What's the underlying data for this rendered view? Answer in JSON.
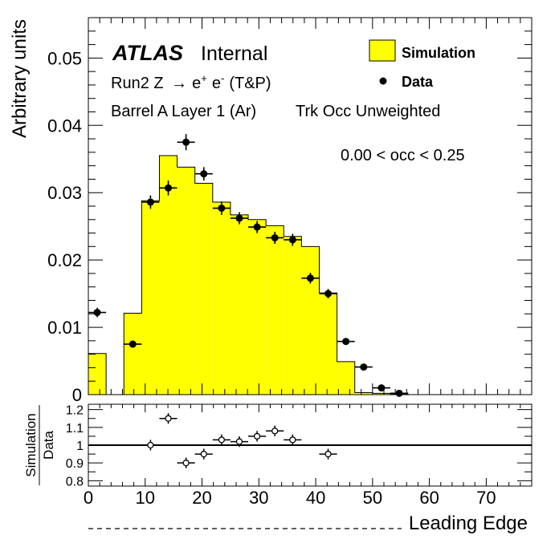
{
  "chart_data": {
    "type": "bar",
    "annotations": {
      "experiment": "ATLAS",
      "status": "Internal",
      "process_prefix": "Run2 Z ",
      "arrow": "→",
      "eplus_e": "e",
      "eplus_sup": "+",
      "eminus_e": "e",
      "eminus_sup": "-",
      "process_suffix": "(T&P)",
      "selection": "Barrel A Layer 1 (Ar)",
      "weighting": "Trk Occ Unweighted",
      "occupancy_range": "0.00 < occ < 0.25"
    },
    "main": {
      "ylabel": "Arbitrary units",
      "xlim": [
        0,
        78
      ],
      "ylim": [
        0,
        0.056
      ],
      "y_ticks": [
        0,
        0.01,
        0.02,
        0.03,
        0.04,
        0.05
      ],
      "y_tick_labels": [
        "0",
        "0.01",
        "0.02",
        "0.03",
        "0.04",
        "0.05"
      ],
      "legend": {
        "placement": "top-right",
        "simulation_label": "Simulation",
        "data_label": "Data",
        "simulation_color": "#ffff00"
      },
      "simulation": {
        "name": "Simulation",
        "bin_edges": [
          0,
          3.125,
          6.25,
          9.375,
          12.5,
          15.625,
          18.75,
          21.875,
          25,
          28.125,
          31.25,
          34.375,
          37.5,
          40.625,
          43.75,
          46.875,
          50,
          53.125,
          56.25
        ],
        "values": [
          0.0061,
          0,
          0.0121,
          0.0288,
          0.0355,
          0.0338,
          0.0314,
          0.0286,
          0.0267,
          0.026,
          0.0251,
          0.0235,
          0.022,
          0.0151,
          0.0049,
          0.0003,
          0.0002,
          0.0001
        ]
      },
      "data": {
        "name": "Data",
        "x": [
          1.5625,
          7.8125,
          10.9375,
          14.0625,
          17.1875,
          20.3125,
          23.4375,
          26.5625,
          29.6875,
          32.8125,
          35.9375,
          39.0625,
          42.1875,
          45.3125,
          48.4375,
          51.5625,
          54.6875
        ],
        "y": [
          0.0122,
          0.0075,
          0.0286,
          0.0307,
          0.0375,
          0.0328,
          0.0277,
          0.0262,
          0.0249,
          0.0233,
          0.023,
          0.0173,
          0.015,
          0.0079,
          0.0041,
          0.001,
          0.0002
        ],
        "yerr": [
          0.0007,
          0.0005,
          0.001,
          0.0011,
          0.0012,
          0.001,
          0.001,
          0.0009,
          0.0009,
          0.0009,
          0.0009,
          0.0008,
          0.0007,
          0.0005,
          0.0003,
          0.0002,
          0.0001
        ],
        "xerr": 1.5625
      }
    },
    "ratio": {
      "ylabel_num": "Simulation",
      "ylabel_den": "Data",
      "ylim": [
        0.77,
        1.23
      ],
      "y_ticks": [
        0.8,
        0.9,
        1.0,
        1.1,
        1.2
      ],
      "y_tick_labels": [
        "0.8",
        "0.9",
        "1",
        "1.1",
        "1.2"
      ],
      "reference_line": 1.0,
      "x": [
        10.9375,
        14.0625,
        17.1875,
        20.3125,
        23.4375,
        26.5625,
        29.6875,
        32.8125,
        35.9375,
        42.1875
      ],
      "y": [
        1.0,
        1.15,
        0.9,
        0.95,
        1.03,
        1.02,
        1.05,
        1.08,
        1.03,
        0.95
      ],
      "yerr": [
        0.03,
        0.03,
        0.03,
        0.03,
        0.03,
        0.03,
        0.03,
        0.03,
        0.03,
        0.03
      ],
      "xerr": 1.5625
    },
    "xlabel": "Leading Edge",
    "x_ticks": [
      0,
      10,
      20,
      30,
      40,
      50,
      60,
      70
    ],
    "x_tick_labels": [
      "0",
      "10",
      "20",
      "30",
      "40",
      "50",
      "60",
      "70"
    ]
  }
}
